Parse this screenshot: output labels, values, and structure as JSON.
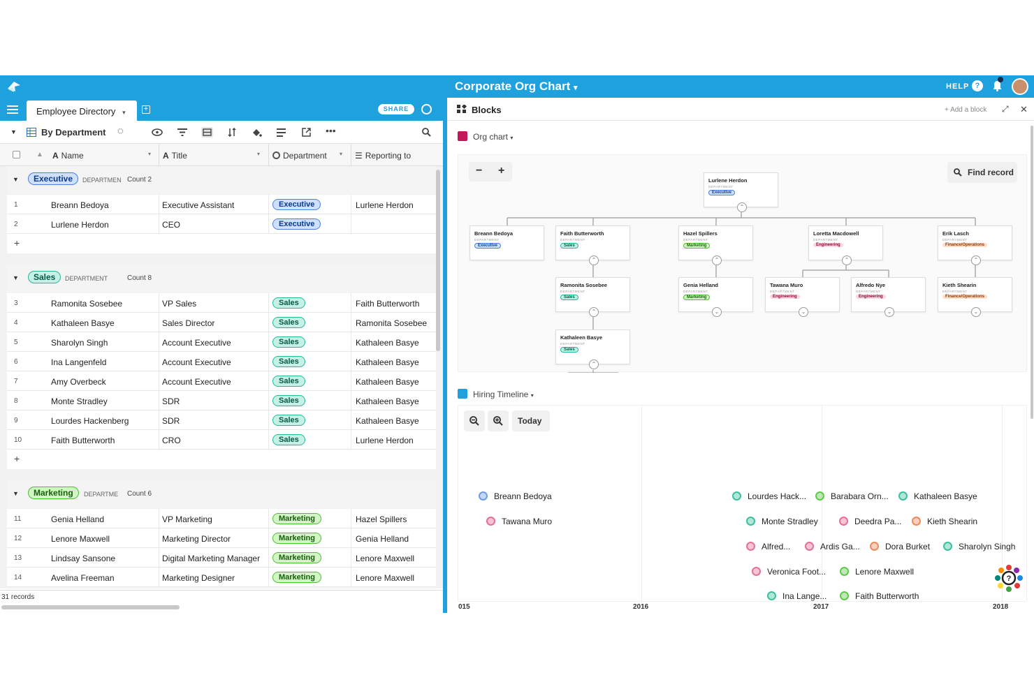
{
  "app": {
    "title": "Corporate Org Chart",
    "title_caret": "▾",
    "help": "HELP",
    "help_icon": "?"
  },
  "base_tab": {
    "label": "Employee Directory",
    "caret": "▾",
    "share": "SHARE"
  },
  "view": {
    "name": "By Department"
  },
  "columns": [
    {
      "label": "Name"
    },
    {
      "label": "Title"
    },
    {
      "label": "Department"
    },
    {
      "label": "Reporting to"
    }
  ],
  "groups": [
    {
      "label": "Executive",
      "field": "DEPARTMEN",
      "count_label": "Count",
      "count": "2",
      "class": "exec",
      "rows": [
        {
          "n": "1",
          "name": "Breann Bedoya",
          "title": "Executive Assistant",
          "dept": "Executive",
          "report": "Lurlene Herdon"
        },
        {
          "n": "2",
          "name": "Lurlene Herdon",
          "title": "CEO",
          "dept": "Executive",
          "report": ""
        }
      ]
    },
    {
      "label": "Sales",
      "field": "DEPARTMENT",
      "count_label": "Count",
      "count": "8",
      "class": "sales",
      "rows": [
        {
          "n": "3",
          "name": "Ramonita Sosebee",
          "title": "VP Sales",
          "dept": "Sales",
          "report": "Faith Butterworth"
        },
        {
          "n": "4",
          "name": "Kathaleen Basye",
          "title": "Sales Director",
          "dept": "Sales",
          "report": "Ramonita Sosebee"
        },
        {
          "n": "5",
          "name": "Sharolyn Singh",
          "title": "Account Executive",
          "dept": "Sales",
          "report": "Kathaleen Basye"
        },
        {
          "n": "6",
          "name": "Ina Langenfeld",
          "title": "Account Executive",
          "dept": "Sales",
          "report": "Kathaleen Basye"
        },
        {
          "n": "7",
          "name": "Amy Overbeck",
          "title": "Account Executive",
          "dept": "Sales",
          "report": "Kathaleen Basye"
        },
        {
          "n": "8",
          "name": "Monte Stradley",
          "title": "SDR",
          "dept": "Sales",
          "report": "Kathaleen Basye"
        },
        {
          "n": "9",
          "name": "Lourdes Hackenberg",
          "title": "SDR",
          "dept": "Sales",
          "report": "Kathaleen Basye"
        },
        {
          "n": "10",
          "name": "Faith Butterworth",
          "title": "CRO",
          "dept": "Sales",
          "report": "Lurlene Herdon"
        }
      ]
    },
    {
      "label": "Marketing",
      "field": "DEPARTME",
      "count_label": "Count",
      "count": "6",
      "class": "mkt",
      "rows": [
        {
          "n": "11",
          "name": "Genia Helland",
          "title": "VP Marketing",
          "dept": "Marketing",
          "report": "Hazel Spillers"
        },
        {
          "n": "12",
          "name": "Lenore Maxwell",
          "title": "Marketing Director",
          "dept": "Marketing",
          "report": "Genia Helland"
        },
        {
          "n": "13",
          "name": "Lindsay Sansone",
          "title": "Digital Marketing Manager",
          "dept": "Marketing",
          "report": "Lenore Maxwell"
        },
        {
          "n": "14",
          "name": "Avelina Freeman",
          "title": "Marketing Designer",
          "dept": "Marketing",
          "report": "Lenore Maxwell"
        }
      ]
    }
  ],
  "footer": {
    "records": "31 records"
  },
  "blocks": {
    "title": "Blocks",
    "add": "+ Add a block"
  },
  "org_block": {
    "title": "Org chart",
    "caret": "▾",
    "minus": "−",
    "plus": "+",
    "find": "Find record",
    "dept_field": "DEPARTMENT",
    "nodes": [
      {
        "name": "Lurlene Herdon",
        "dept": "Executive",
        "class": "exec"
      },
      {
        "name": "Breann Bedoya",
        "dept": "Executive",
        "class": "exec"
      },
      {
        "name": "Faith Butterworth",
        "dept": "Sales",
        "class": "sales"
      },
      {
        "name": "Hazel Spillers",
        "dept": "Marketing",
        "class": "mkt"
      },
      {
        "name": "Loretta Macdowell",
        "dept": "Engineering",
        "class": "eng"
      },
      {
        "name": "Erik Lasch",
        "dept": "Finance/Operations",
        "class": "fin"
      },
      {
        "name": "Ramonita Sosebee",
        "dept": "Sales",
        "class": "sales"
      },
      {
        "name": "Genia Helland",
        "dept": "Marketing",
        "class": "mkt"
      },
      {
        "name": "Tawana Muro",
        "dept": "Engineering",
        "class": "eng"
      },
      {
        "name": "Alfredo Nye",
        "dept": "Engineering",
        "class": "eng"
      },
      {
        "name": "Kieth Shearin",
        "dept": "Finance/Operations",
        "class": "fin"
      },
      {
        "name": "Kathaleen Basye",
        "dept": "Sales",
        "class": "sales"
      }
    ]
  },
  "timeline_block": {
    "title": "Hiring Timeline",
    "caret": "▾",
    "today": "Today",
    "items": [
      {
        "name": "Breann Bedoya",
        "color": "#6f9be8"
      },
      {
        "name": "Tawana Muro",
        "color": "#e66f95"
      },
      {
        "name": "Lourdes Hack...",
        "color": "#3cc09e"
      },
      {
        "name": "Barabara Orn...",
        "color": "#5ec94a"
      },
      {
        "name": "Kathaleen Basye",
        "color": "#3cc09e"
      },
      {
        "name": "Monte Stradley",
        "color": "#3cc09e"
      },
      {
        "name": "Deedra Pa...",
        "color": "#e66f95"
      },
      {
        "name": "Kieth Shearin",
        "color": "#f08a5a"
      },
      {
        "name": "Alfred...",
        "color": "#e66f95"
      },
      {
        "name": "Ardis Ga...",
        "color": "#e66f95"
      },
      {
        "name": "Dora Burket",
        "color": "#f08a5a"
      },
      {
        "name": "Sharolyn Singh",
        "color": "#3cc09e"
      },
      {
        "name": "Veronica Foot...",
        "color": "#e66f95"
      },
      {
        "name": "Lenore Maxwell",
        "color": "#5ec94a"
      },
      {
        "name": "Ina Lange...",
        "color": "#3cc09e"
      },
      {
        "name": "Faith Butterworth",
        "color": "#5ec94a"
      }
    ],
    "years": [
      "015",
      "2016",
      "2017",
      "2018"
    ]
  }
}
